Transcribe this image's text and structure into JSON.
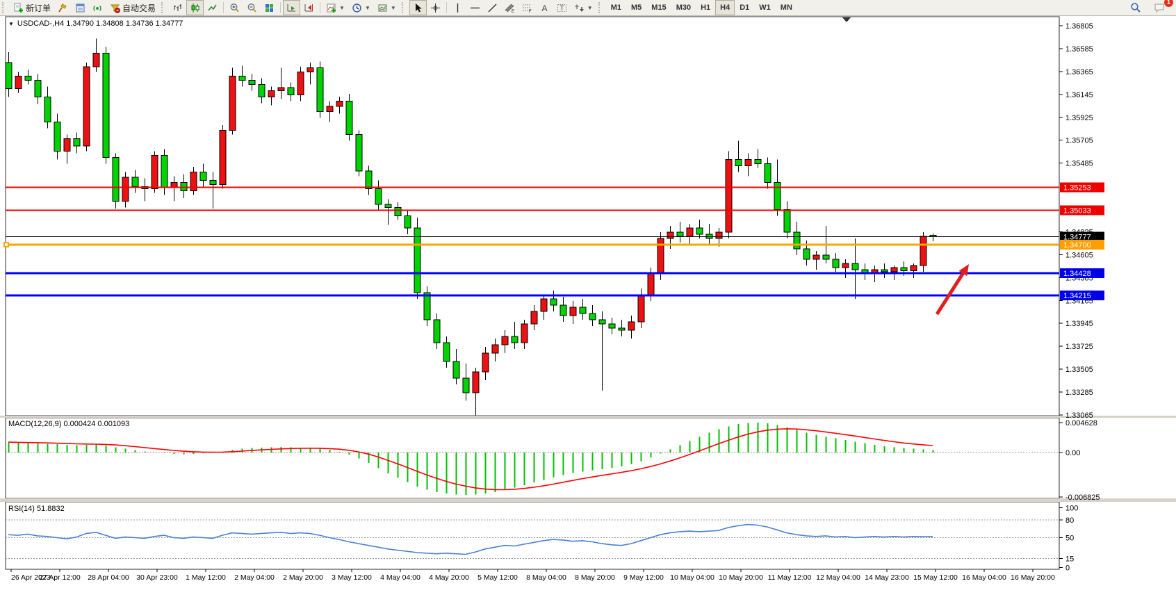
{
  "toolbar": {
    "new_order_label": "新订单",
    "autotrading_label": "自动交易",
    "periods": [
      "M1",
      "M5",
      "M15",
      "M30",
      "H1",
      "H4",
      "D1",
      "W1",
      "MN"
    ],
    "active_period": "H4",
    "notification_count": "1",
    "icons": [
      "new-order-icon",
      "hammer-icon",
      "market-watch-icon",
      "signal-icon",
      "autotrading-icon",
      "bar-chart-icon",
      "candlestick-chart-icon",
      "line-chart-icon",
      "zoom-in-icon",
      "zoom-out-icon",
      "tile-windows-icon",
      "auto-scroll-icon",
      "chart-shift-icon",
      "indicators-icon",
      "periods-icon",
      "templates-icon",
      "cursor-icon",
      "crosshair-icon",
      "vertical-line-icon",
      "horizontal-line-icon",
      "trendline-icon",
      "equidistant-channel-icon",
      "fibonacci-icon",
      "text-icon",
      "text-label-icon",
      "arrows-icon",
      "search-icon",
      "chat-icon"
    ]
  },
  "chart": {
    "title": "USDCAD-,H4  1.34790 1.34808 1.34736 1.34777",
    "symbol": "USDCAD-",
    "timeframe": "H4",
    "ohlc": {
      "open": "1.34790",
      "high": "1.34808",
      "low": "1.34736",
      "close": "1.34777"
    }
  },
  "chart_data": {
    "type": "candlestick+indicators",
    "up_color": "#ee1111",
    "down_color": "#00d400",
    "price_panel": {
      "range_top": 1.36892,
      "range_bottom": 1.33058,
      "y_ticks": [
        "1.36805",
        "1.36585",
        "1.36365",
        "1.36145",
        "1.35925",
        "1.35705",
        "1.35485",
        "1.34825",
        "1.34605",
        "1.34385",
        "1.34165",
        "1.33945",
        "1.33725",
        "1.33505",
        "1.33285",
        "1.33065"
      ],
      "hlines": [
        {
          "value": 1.35253,
          "label": "1.35253",
          "color": "#ee0000",
          "width": 2,
          "badge": "#ee0000"
        },
        {
          "value": 1.35033,
          "label": "1.35033",
          "color": "#ee0000",
          "width": 2,
          "badge": "#ee0000"
        },
        {
          "value": 1.34777,
          "label": "1.34777",
          "color": "#000000",
          "width": 1,
          "badge": "#000000"
        },
        {
          "value": 1.347,
          "label": "1.34700",
          "color": "#ffa500",
          "width": 3,
          "badge": "#ff9e00",
          "anchor": true
        },
        {
          "value": 1.34428,
          "label": "1.34428",
          "color": "#0000ff",
          "width": 3,
          "badge": "#0000e6"
        },
        {
          "value": 1.34215,
          "label": "1.34215",
          "color": "#0000ff",
          "width": 3,
          "badge": "#0000e6"
        }
      ],
      "candles": [
        [
          1.3645,
          1.3655,
          1.3612,
          1.362
        ],
        [
          1.362,
          1.3636,
          1.3616,
          1.3632
        ],
        [
          1.3632,
          1.3638,
          1.3624,
          1.3628
        ],
        [
          1.3628,
          1.3634,
          1.3605,
          1.3612
        ],
        [
          1.3612,
          1.3622,
          1.3582,
          1.3588
        ],
        [
          1.3588,
          1.3596,
          1.3552,
          1.356
        ],
        [
          1.356,
          1.3576,
          1.3548,
          1.3572
        ],
        [
          1.3572,
          1.3578,
          1.3558,
          1.3565
        ],
        [
          1.3565,
          1.3645,
          1.356,
          1.3641
        ],
        [
          1.3641,
          1.3668,
          1.3636,
          1.3654
        ],
        [
          1.3654,
          1.366,
          1.3548,
          1.3554
        ],
        [
          1.3554,
          1.3558,
          1.3505,
          1.3512
        ],
        [
          1.3512,
          1.354,
          1.3506,
          1.3535
        ],
        [
          1.3535,
          1.3542,
          1.352,
          1.3526
        ],
        [
          1.3526,
          1.3534,
          1.3512,
          1.3524
        ],
        [
          1.3524,
          1.356,
          1.352,
          1.3556
        ],
        [
          1.3556,
          1.3562,
          1.3518,
          1.3525
        ],
        [
          1.3525,
          1.3536,
          1.3512,
          1.353
        ],
        [
          1.353,
          1.3538,
          1.3515,
          1.3522
        ],
        [
          1.3522,
          1.3545,
          1.3518,
          1.354
        ],
        [
          1.354,
          1.3548,
          1.3526,
          1.3532
        ],
        [
          1.3532,
          1.354,
          1.3505,
          1.3528
        ],
        [
          1.3528,
          1.3585,
          1.3524,
          1.358
        ],
        [
          1.358,
          1.364,
          1.3576,
          1.3632
        ],
        [
          1.3632,
          1.3642,
          1.3622,
          1.3628
        ],
        [
          1.3628,
          1.3634,
          1.3618,
          1.3624
        ],
        [
          1.3624,
          1.363,
          1.3606,
          1.3612
        ],
        [
          1.3612,
          1.3622,
          1.3604,
          1.3618
        ],
        [
          1.3618,
          1.364,
          1.361,
          1.3621
        ],
        [
          1.3621,
          1.3626,
          1.3608,
          1.3614
        ],
        [
          1.3614,
          1.3641,
          1.3608,
          1.3636
        ],
        [
          1.3636,
          1.3645,
          1.3624,
          1.364
        ],
        [
          1.364,
          1.3646,
          1.3592,
          1.3598
        ],
        [
          1.3598,
          1.3608,
          1.3588,
          1.3603
        ],
        [
          1.3603,
          1.3612,
          1.3596,
          1.3608
        ],
        [
          1.3608,
          1.3615,
          1.357,
          1.3576
        ],
        [
          1.3576,
          1.358,
          1.3536,
          1.3541
        ],
        [
          1.3541,
          1.3546,
          1.3518,
          1.3524
        ],
        [
          1.3524,
          1.3532,
          1.3504,
          1.3509
        ],
        [
          1.3509,
          1.3514,
          1.3489,
          1.3506
        ],
        [
          1.3506,
          1.3511,
          1.3494,
          1.3498
        ],
        [
          1.3498,
          1.3503,
          1.348,
          1.3486
        ],
        [
          1.3486,
          1.3496,
          1.3418,
          1.3424
        ],
        [
          1.3424,
          1.343,
          1.3392,
          1.3398
        ],
        [
          1.3398,
          1.3404,
          1.337,
          1.3376
        ],
        [
          1.3376,
          1.3382,
          1.3352,
          1.3358
        ],
        [
          1.3358,
          1.337,
          1.3336,
          1.3342
        ],
        [
          1.3342,
          1.3356,
          1.332,
          1.3328
        ],
        [
          1.3328,
          1.3352,
          1.3306,
          1.3348
        ],
        [
          1.3348,
          1.3372,
          1.334,
          1.3366
        ],
        [
          1.3366,
          1.338,
          1.3358,
          1.3374
        ],
        [
          1.3374,
          1.3388,
          1.3366,
          1.3382
        ],
        [
          1.3382,
          1.3396,
          1.337,
          1.3376
        ],
        [
          1.3376,
          1.3398,
          1.337,
          1.3394
        ],
        [
          1.3394,
          1.3412,
          1.3388,
          1.3406
        ],
        [
          1.3406,
          1.3422,
          1.3398,
          1.3418
        ],
        [
          1.3418,
          1.3426,
          1.3406,
          1.3412
        ],
        [
          1.3412,
          1.342,
          1.3396,
          1.3402
        ],
        [
          1.3402,
          1.3416,
          1.3394,
          1.341
        ],
        [
          1.341,
          1.3418,
          1.3398,
          1.3404
        ],
        [
          1.3404,
          1.3412,
          1.3392,
          1.3398
        ],
        [
          1.3398,
          1.3406,
          1.333,
          1.3394
        ],
        [
          1.3394,
          1.34,
          1.3384,
          1.339
        ],
        [
          1.339,
          1.3398,
          1.3382,
          1.3388
        ],
        [
          1.3388,
          1.3402,
          1.338,
          1.3396
        ],
        [
          1.3396,
          1.3428,
          1.339,
          1.3422
        ],
        [
          1.3422,
          1.3448,
          1.3416,
          1.3442
        ],
        [
          1.3442,
          1.3482,
          1.3436,
          1.3476
        ],
        [
          1.3476,
          1.3488,
          1.3466,
          1.3482
        ],
        [
          1.3482,
          1.3492,
          1.3472,
          1.3478
        ],
        [
          1.3478,
          1.349,
          1.347,
          1.3486
        ],
        [
          1.3486,
          1.3494,
          1.3476,
          1.348
        ],
        [
          1.348,
          1.349,
          1.347,
          1.3476
        ],
        [
          1.3476,
          1.3486,
          1.3468,
          1.3482
        ],
        [
          1.3482,
          1.356,
          1.3476,
          1.3552
        ],
        [
          1.3552,
          1.357,
          1.354,
          1.3546
        ],
        [
          1.3546,
          1.3558,
          1.3536,
          1.3552
        ],
        [
          1.3552,
          1.3562,
          1.3544,
          1.3548
        ],
        [
          1.3548,
          1.3554,
          1.3524,
          1.353
        ],
        [
          1.353,
          1.3552,
          1.3498,
          1.3504
        ],
        [
          1.3504,
          1.3512,
          1.3476,
          1.3482
        ],
        [
          1.3482,
          1.3492,
          1.346,
          1.3466
        ],
        [
          1.3466,
          1.3474,
          1.345,
          1.3456
        ],
        [
          1.3456,
          1.3464,
          1.3446,
          1.346
        ],
        [
          1.346,
          1.3488,
          1.3452,
          1.3456
        ],
        [
          1.3456,
          1.3462,
          1.3444,
          1.3448
        ],
        [
          1.3448,
          1.3456,
          1.3438,
          1.3452
        ],
        [
          1.3452,
          1.3476,
          1.3418,
          1.3446
        ],
        [
          1.3446,
          1.3452,
          1.3436,
          1.3442
        ],
        [
          1.3442,
          1.345,
          1.3434,
          1.3446
        ],
        [
          1.3446,
          1.3452,
          1.3438,
          1.3444
        ],
        [
          1.3444,
          1.345,
          1.3436,
          1.3448
        ],
        [
          1.3448,
          1.3454,
          1.344,
          1.3445
        ],
        [
          1.3445,
          1.3452,
          1.3438,
          1.345
        ],
        [
          1.345,
          1.3482,
          1.3444,
          1.3478
        ],
        [
          1.3479,
          1.34808,
          1.34736,
          1.34777
        ]
      ]
    },
    "macd_panel": {
      "label": "MACD(12,26,9) 0.000424 0.001093",
      "name": "MACD",
      "params": "12,26,9",
      "current_macd": "0.000424",
      "current_signal": "0.001093",
      "y_labels": [
        "0.004628",
        "0.00",
        "-0.006825"
      ],
      "histogram_color": "#00c000",
      "signal_color": "#ff0000",
      "values": [
        0.00155,
        0.0015,
        0.00145,
        0.00142,
        0.00138,
        0.0013,
        0.00122,
        0.00115,
        0.0012,
        0.00125,
        0.0011,
        0.00085,
        0.0006,
        0.0004,
        0.0002,
        5e-05,
        -0.0001,
        -0.0002,
        -0.00025,
        -0.0002,
        -0.0001,
        0.0,
        0.00015,
        0.0004,
        0.0006,
        0.00072,
        0.0008,
        0.00085,
        0.00088,
        0.00085,
        0.0008,
        0.00075,
        0.00065,
        0.00045,
        0.00015,
        -0.0003,
        -0.0009,
        -0.0016,
        -0.0024,
        -0.0032,
        -0.0039,
        -0.0045,
        -0.0052,
        -0.0057,
        -0.00605,
        -0.0063,
        -0.00645,
        -0.0065,
        -0.00645,
        -0.0063,
        -0.00605,
        -0.00575,
        -0.0054,
        -0.005,
        -0.0046,
        -0.0042,
        -0.0038,
        -0.00345,
        -0.00315,
        -0.0029,
        -0.0027,
        -0.00255,
        -0.00235,
        -0.0021,
        -0.00175,
        -0.0013,
        -0.00075,
        -0.00015,
        0.0005,
        0.00115,
        0.0018,
        0.00245,
        0.00305,
        0.0036,
        0.00405,
        0.0044,
        0.0046,
        0.00462,
        0.0045,
        0.00425,
        0.0039,
        0.0035,
        0.0031,
        0.00275,
        0.00245,
        0.0022,
        0.00195,
        0.0017,
        0.00145,
        0.0012,
        0.001,
        0.00085,
        0.00072,
        0.0006,
        0.0005,
        0.000424
      ],
      "signal": [
        0.00162,
        0.00159,
        0.00156,
        0.00153,
        0.0015,
        0.00146,
        0.00141,
        0.00136,
        0.00133,
        0.00131,
        0.00127,
        0.00119,
        0.00107,
        0.00094,
        0.00079,
        0.00064,
        0.00049,
        0.00035,
        0.00023,
        0.00014,
        9e-05,
        7e-05,
        9e-05,
        0.00015,
        0.00024,
        0.00034,
        0.00043,
        0.00051,
        0.00058,
        0.00064,
        0.00067,
        0.00069,
        0.00068,
        0.00063,
        0.00054,
        0.00037,
        0.00012,
        -0.00022,
        -0.00066,
        -0.00117,
        -0.00172,
        -0.00228,
        -0.00286,
        -0.00343,
        -0.00395,
        -0.00442,
        -0.00483,
        -0.00516,
        -0.00542,
        -0.0056,
        -0.00569,
        -0.0057,
        -0.00564,
        -0.00551,
        -0.00533,
        -0.0051,
        -0.00484,
        -0.00456,
        -0.00428,
        -0.004,
        -0.00374,
        -0.0035,
        -0.00327,
        -0.00304,
        -0.00278,
        -0.00248,
        -0.00214,
        -0.00174,
        -0.00129,
        -0.0008,
        -0.00028,
        0.00027,
        0.00082,
        0.00138,
        0.00191,
        0.00241,
        0.00285,
        0.0032,
        0.00346,
        0.00362,
        0.00368,
        0.00364,
        0.00353,
        0.00338,
        0.00319,
        0.00299,
        0.00278,
        0.00257,
        0.00234,
        0.00211,
        0.00189,
        0.00168,
        0.00149,
        0.00134,
        0.00121,
        0.001093
      ]
    },
    "rsi_panel": {
      "label": "RSI(14) 51.8832",
      "name": "RSI",
      "params": "14",
      "current": "51.8832",
      "y_labels": [
        "100",
        "80",
        "50",
        "15",
        "0"
      ],
      "levels": [
        80,
        50,
        15
      ],
      "line_color": "#4a7fd4",
      "values": [
        55,
        54,
        56,
        53,
        52,
        50,
        48,
        51,
        57,
        59,
        54,
        49,
        51,
        50,
        49,
        52,
        54,
        50,
        49,
        51,
        50,
        49,
        54,
        58,
        57,
        56,
        57,
        58,
        59,
        57,
        58,
        57,
        54,
        50,
        47,
        43,
        40,
        37,
        34,
        31,
        29,
        27,
        25,
        24,
        23,
        24,
        23,
        22,
        26,
        31,
        34,
        37,
        36,
        39,
        42,
        45,
        47,
        46,
        44,
        45,
        43,
        40,
        38,
        37,
        40,
        45,
        50,
        55,
        58,
        60,
        61,
        60,
        61,
        62,
        67,
        70,
        72,
        71,
        68,
        63,
        58,
        55,
        53,
        52,
        53,
        51,
        52,
        50,
        51,
        52,
        51,
        52,
        51,
        52,
        51.5,
        51.8832
      ]
    },
    "x_labels": [
      "26 Apr 2023",
      "27 Apr 12:00",
      "28 Apr 04:00",
      "30 Apr 23:00",
      "1 May 12:00",
      "2 May 04:00",
      "2 May 20:00",
      "3 May 12:00",
      "4 May 04:00",
      "4 May 20:00",
      "5 May 12:00",
      "8 May 04:00",
      "8 May 20:00",
      "9 May 12:00",
      "10 May 04:00",
      "10 May 20:00",
      "11 May 12:00",
      "12 May 04:00",
      "14 May 23:00",
      "15 May 12:00",
      "16 May 04:00",
      "16 May 20:00"
    ],
    "annotation_arrow": {
      "from": [
        1348,
        429
      ],
      "to": [
        1394,
        357
      ],
      "color": "#e02020"
    }
  }
}
